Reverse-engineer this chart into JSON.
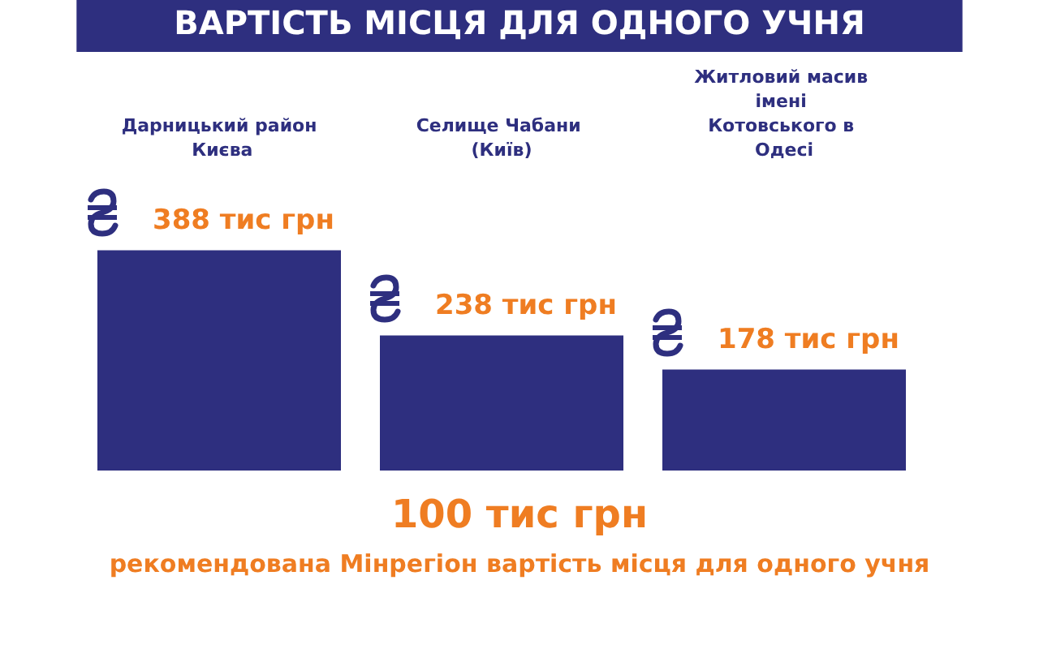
{
  "chart_data": {
    "type": "bar",
    "title": "ВАРТІСТЬ МІСЦЯ ДЛЯ ОДНОГО УЧНЯ",
    "categories": [
      "Дарницький район Києва",
      "Селище Чабани (Київ)",
      "Житловий масив імені Котовського в Одесі"
    ],
    "values": [
      388,
      238,
      178
    ],
    "value_labels": [
      "388 тис грн",
      "238 тис грн",
      "178 тис грн"
    ],
    "color": "#2e2f7f",
    "annotations": [
      "100 тис грн",
      "рекомендована Мінрегіон вартість місця для одного учня"
    ]
  }
}
